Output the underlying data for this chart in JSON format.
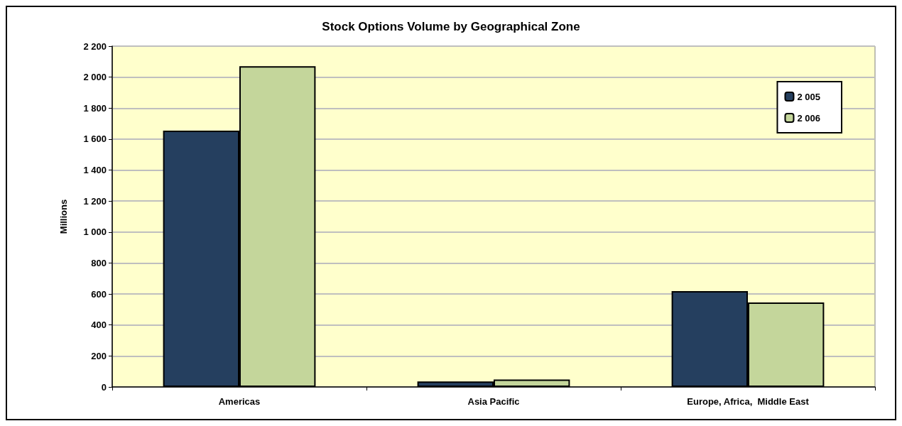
{
  "chart_data": {
    "type": "bar",
    "title": "Stock Options Volume by Geographical Zone",
    "ylabel": "Millions",
    "categories": [
      "Americas",
      "Asia Pacific",
      "Europe, Africa,  Middle East"
    ],
    "series": [
      {
        "name": "2 005",
        "color": "#253f5f",
        "values": [
          1655,
          36,
          619
        ]
      },
      {
        "name": "2 006",
        "color": "#c4d69b",
        "values": [
          2070,
          48,
          545
        ]
      }
    ],
    "ylim": [
      0,
      2200
    ],
    "yticks": [
      0,
      200,
      400,
      600,
      800,
      {
        "value": 1000,
        "label": "1 000"
      },
      {
        "value": 1200,
        "label": "1 200"
      },
      {
        "value": 1400,
        "label": "1 400"
      },
      {
        "value": 1600,
        "label": "1 600"
      },
      {
        "value": 1800,
        "label": "1 800"
      },
      {
        "value": 2000,
        "label": "2 000"
      },
      {
        "value": 2200,
        "label": "2 200"
      }
    ],
    "grid": "y",
    "legend": "top right"
  }
}
